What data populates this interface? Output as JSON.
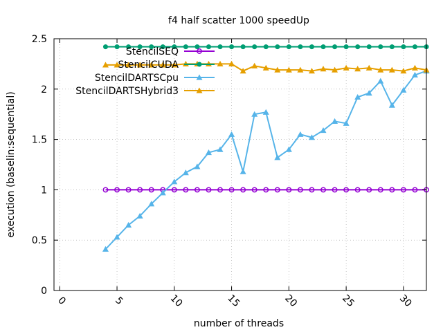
{
  "chart_data": {
    "type": "line",
    "title": "f4 half scatter 1000 speedUp",
    "xlabel": "number of threads",
    "ylabel": "execution (baselin:sequential)",
    "xlim": [
      -0.5,
      32
    ],
    "ylim": [
      0,
      2.5
    ],
    "xticks": [
      "0",
      "5",
      "10",
      "15",
      "20",
      "25",
      "30"
    ],
    "yticks": [
      "0",
      "0.5",
      "1",
      "1.5",
      "2",
      "2.5"
    ],
    "grid": true,
    "legend_position": "top-left",
    "x": [
      4,
      5,
      6,
      7,
      8,
      9,
      10,
      11,
      12,
      13,
      14,
      15,
      16,
      17,
      18,
      19,
      20,
      21,
      22,
      23,
      24,
      25,
      26,
      27,
      28,
      29,
      30,
      31,
      32
    ],
    "series": [
      {
        "name": "StencilSEQ",
        "color": "#9400d3",
        "marker": "circle-open",
        "values": [
          1,
          1,
          1,
          1,
          1,
          1,
          1,
          1,
          1,
          1,
          1,
          1,
          1,
          1,
          1,
          1,
          1,
          1,
          1,
          1,
          1,
          1,
          1,
          1,
          1,
          1,
          1,
          1,
          1
        ]
      },
      {
        "name": "StencilCUDA",
        "color": "#009e73",
        "marker": "circle",
        "values": [
          2.42,
          2.42,
          2.42,
          2.42,
          2.42,
          2.42,
          2.42,
          2.42,
          2.42,
          2.42,
          2.42,
          2.42,
          2.42,
          2.42,
          2.42,
          2.42,
          2.42,
          2.42,
          2.42,
          2.42,
          2.42,
          2.42,
          2.42,
          2.42,
          2.42,
          2.42,
          2.42,
          2.42,
          2.42
        ]
      },
      {
        "name": "StencilDARTSCpu",
        "color": "#56b4e9",
        "marker": "triangle",
        "values": [
          0.41,
          0.53,
          0.65,
          0.74,
          0.86,
          0.97,
          1.08,
          1.17,
          1.23,
          1.37,
          1.4,
          1.55,
          1.18,
          1.75,
          1.77,
          1.32,
          1.4,
          1.55,
          1.52,
          1.59,
          1.68,
          1.66,
          1.92,
          1.96,
          2.08,
          1.84,
          1.99,
          2.14,
          2.18
        ]
      },
      {
        "name": "StencilDARTSHybrid3",
        "color": "#e69f00",
        "marker": "triangle",
        "values": [
          2.24,
          2.24,
          2.24,
          2.24,
          2.24,
          2.24,
          2.24,
          2.25,
          2.25,
          2.25,
          2.25,
          2.25,
          2.18,
          2.23,
          2.21,
          2.19,
          2.19,
          2.19,
          2.18,
          2.2,
          2.19,
          2.21,
          2.2,
          2.21,
          2.19,
          2.19,
          2.18,
          2.21,
          2.19
        ]
      }
    ]
  }
}
